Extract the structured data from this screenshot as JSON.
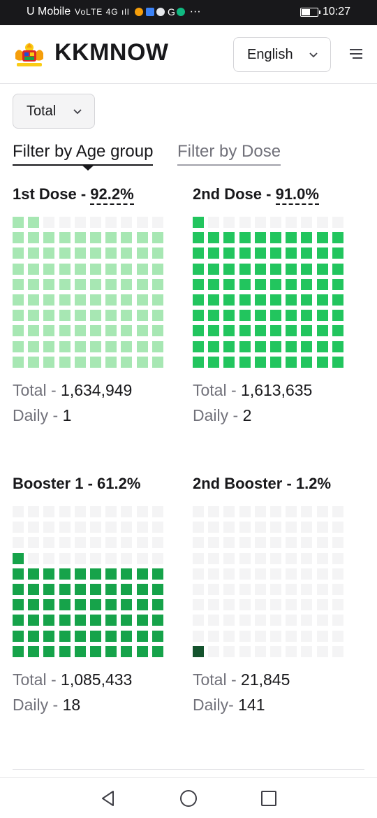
{
  "status_bar": {
    "carrier": "U Mobile",
    "indicators": "VoLTE 4G ıll",
    "app_icons": [
      "app-icon",
      "app-icon",
      "wechat-icon",
      "google-icon",
      "app-icon"
    ],
    "more": "···",
    "time": "10:27",
    "battery_level": 0.55
  },
  "header": {
    "logo_icon": "malaysia-coat-of-arms-icon",
    "brand": "KKMNOW",
    "language": "English",
    "menu_icon": "hamburger-menu-icon"
  },
  "filter": {
    "total_select": "Total",
    "tabs": [
      {
        "label": "Filter by Age group",
        "active": true
      },
      {
        "label": "Filter by Dose",
        "active": false
      }
    ]
  },
  "cards": [
    {
      "title": "1st Dose - ",
      "percent": "92.2%",
      "percent_value": 92.2,
      "filled_color": "#a7e7b3",
      "empty_color": "#f4f4f5",
      "total_label": "Total - ",
      "total": "1,634,949",
      "daily_label": "Daily - ",
      "daily": "1"
    },
    {
      "title": "2nd Dose - ",
      "percent": "91.0%",
      "percent_value": 91.0,
      "filled_color": "#22c55e",
      "empty_color": "#f4f4f5",
      "total_label": "Total - ",
      "total": "1,613,635",
      "daily_label": "Daily - ",
      "daily": "2"
    },
    {
      "title": "Booster 1 - ",
      "percent": "61.2%",
      "percent_value": 61.2,
      "filled_color": "#16a34a",
      "empty_color": "#f4f4f5",
      "total_label": "Total - ",
      "total": "1,085,433",
      "daily_label": "Daily - ",
      "daily": "18"
    },
    {
      "title": "2nd Booster - ",
      "percent": "1.2%",
      "percent_value": 1.2,
      "filled_color": "#14532d",
      "empty_color": "#f4f4f5",
      "total_label": "Total - ",
      "total": "21,845",
      "daily_label": "Daily- ",
      "daily": "141"
    }
  ],
  "nav_bar": {
    "back_icon": "back-triangle-icon",
    "home_icon": "home-circle-icon",
    "recents_icon": "recents-square-icon"
  }
}
